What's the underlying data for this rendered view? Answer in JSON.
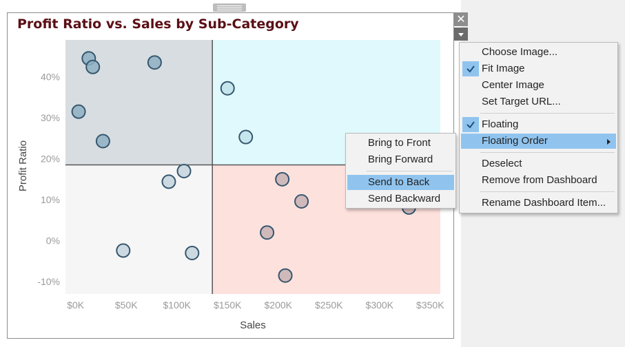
{
  "chart": {
    "title": "Profit Ratio vs. Sales by Sub-Category",
    "x_label": "Sales",
    "y_label": "Profit Ratio",
    "x_ticks": [
      "$0K",
      "$50K",
      "$100K",
      "$150K",
      "$200K",
      "$250K",
      "$300K",
      "$350K"
    ],
    "y_ticks": [
      "40%",
      "30%",
      "20%",
      "10%",
      "0%",
      "-10%"
    ],
    "quadrant_colors": {
      "top_left": "#d7dde0",
      "top_right": "#e0f9fc",
      "bottom_left": "#f6f6f6",
      "bottom_right": "#fde1dd"
    },
    "reference_lines": {
      "sales": 135000,
      "profit_ratio": 0.185
    }
  },
  "chart_data": {
    "type": "scatter",
    "title": "Profit Ratio vs. Sales by Sub-Category",
    "xlabel": "Sales",
    "ylabel": "Profit Ratio",
    "xlim": [
      -10000,
      360000
    ],
    "ylim": [
      -0.13,
      0.49
    ],
    "points": [
      {
        "x": 13000,
        "y": 0.445,
        "quadrant": "top_left"
      },
      {
        "x": 17000,
        "y": 0.424,
        "quadrant": "top_left"
      },
      {
        "x": 78000,
        "y": 0.435,
        "quadrant": "top_left"
      },
      {
        "x": 3000,
        "y": 0.315,
        "quadrant": "top_left"
      },
      {
        "x": 27000,
        "y": 0.243,
        "quadrant": "top_left"
      },
      {
        "x": 150000,
        "y": 0.372,
        "quadrant": "top_right"
      },
      {
        "x": 168000,
        "y": 0.253,
        "quadrant": "top_right"
      },
      {
        "x": 107000,
        "y": 0.17,
        "quadrant": "bottom_left"
      },
      {
        "x": 92000,
        "y": 0.144,
        "quadrant": "bottom_left"
      },
      {
        "x": 47000,
        "y": -0.024,
        "quadrant": "bottom_left"
      },
      {
        "x": 115000,
        "y": -0.03,
        "quadrant": "bottom_left"
      },
      {
        "x": 204000,
        "y": 0.15,
        "quadrant": "bottom_right"
      },
      {
        "x": 223000,
        "y": 0.096,
        "quadrant": "bottom_right"
      },
      {
        "x": 189000,
        "y": 0.02,
        "quadrant": "bottom_right"
      },
      {
        "x": 207000,
        "y": -0.085,
        "quadrant": "bottom_right"
      },
      {
        "x": 329000,
        "y": 0.081,
        "quadrant": "bottom_right"
      }
    ],
    "grid": false
  },
  "point_colors": {
    "top_left": "#8fb0c3",
    "top_right": "#bfe3ea",
    "bottom_left": "#c4d3dd",
    "bottom_right": "#c8b2b5"
  },
  "context_menu": {
    "items": [
      "Choose Image...",
      "Fit Image",
      "Center Image",
      "Set Target URL...",
      "Floating",
      "Floating Order",
      "Deselect",
      "Remove from Dashboard",
      "Rename Dashboard Item..."
    ]
  },
  "submenu": {
    "items": [
      "Bring to Front",
      "Bring Forward",
      "Send to Back",
      "Send Backward"
    ]
  },
  "controls": {
    "close_glyph": "✕"
  }
}
